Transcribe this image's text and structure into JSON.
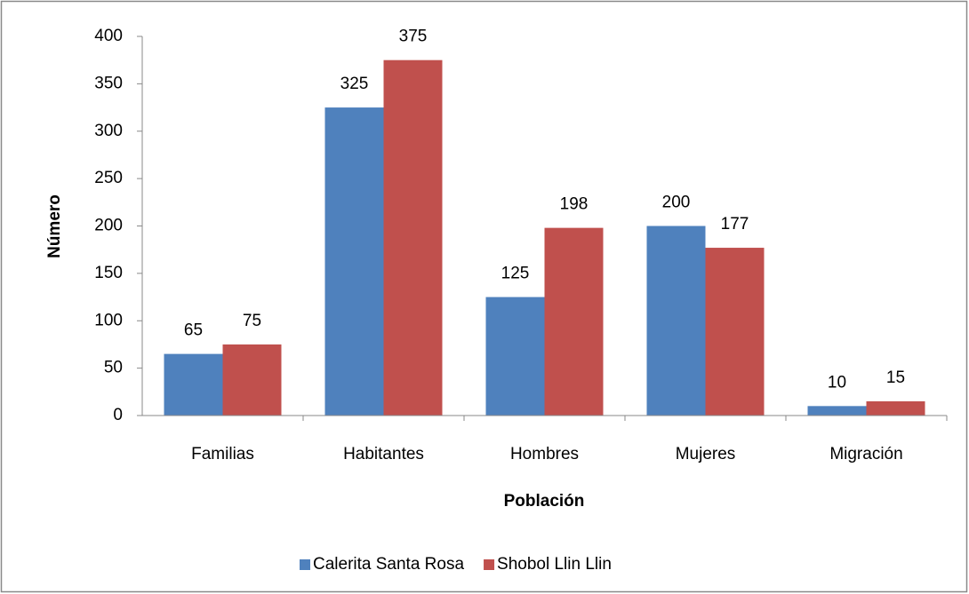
{
  "chart_data": {
    "type": "bar",
    "x_label": "Población",
    "y_label": "Número",
    "categories": [
      "Familias",
      "Habitantes",
      "Hombres",
      "Mujeres",
      "Migración"
    ],
    "series": [
      {
        "name": "Calerita Santa Rosa",
        "color": "#4f81bd",
        "values": [
          65,
          325,
          125,
          200,
          10
        ]
      },
      {
        "name": "Shobol Llin Llin",
        "color": "#c0504d",
        "values": [
          75,
          375,
          198,
          177,
          15
        ]
      }
    ],
    "ylim": [
      0,
      400
    ],
    "yticks": [
      0,
      50,
      100,
      150,
      200,
      250,
      300,
      350,
      400
    ],
    "grid": false,
    "legend": "bottom"
  }
}
